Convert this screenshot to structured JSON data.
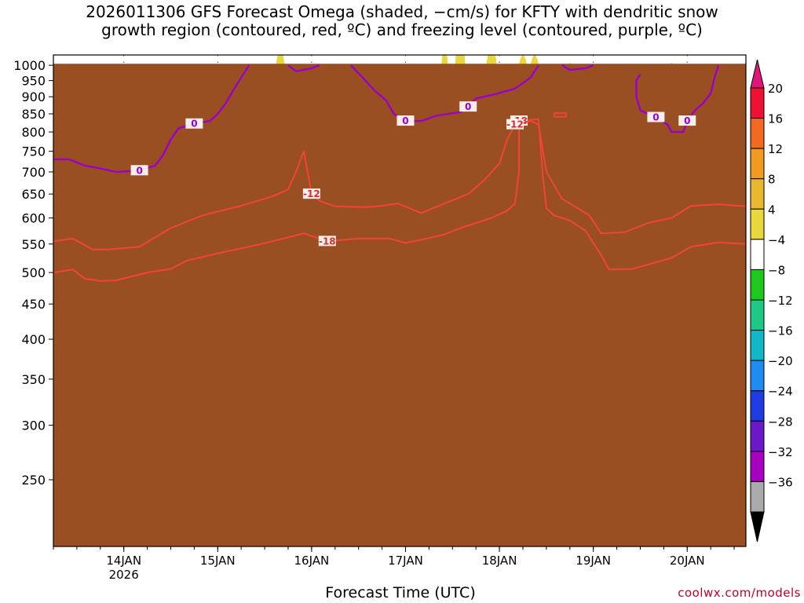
{
  "chart_data": {
    "type": "heatmap",
    "title_line1": "2026011306 GFS Forecast Omega (shaded, −cm/s) for KFTY with dendritic snow",
    "title_line2": "growth region (contoured, red, ºC) and freezing level (contoured, purple, ºC)",
    "xlabel": "Forecast Time (UTC)",
    "credit": "coolwx.com/models",
    "y_axis": {
      "scale": "log-pressure",
      "range_hpa": [
        1035,
        200
      ],
      "ticks": [
        250,
        300,
        350,
        400,
        450,
        500,
        550,
        600,
        650,
        700,
        750,
        800,
        850,
        900,
        950,
        1000
      ]
    },
    "x_axis": {
      "range_hours": [
        0,
        177
      ],
      "ticks": [
        {
          "label": "14JAN",
          "sub": "2026",
          "hour": 18
        },
        {
          "label": "15JAN",
          "sub": "",
          "hour": 42
        },
        {
          "label": "16JAN",
          "sub": "",
          "hour": 66
        },
        {
          "label": "17JAN",
          "sub": "",
          "hour": 90
        },
        {
          "label": "18JAN",
          "sub": "",
          "hour": 114
        },
        {
          "label": "19JAN",
          "sub": "",
          "hour": 138
        },
        {
          "label": "20JAN",
          "sub": "",
          "hour": 162
        }
      ]
    },
    "colorbar": {
      "levels": [
        "20",
        "16",
        "12",
        "8",
        "4",
        "−4",
        "−8",
        "−12",
        "−16",
        "−20",
        "−24",
        "−28",
        "−32",
        "−36"
      ],
      "colors": [
        "#ee1133",
        "#f26a22",
        "#f09a22",
        "#e8b830",
        "#e8d840",
        "#ffffff",
        "#1ec81e",
        "#20c888",
        "#12b8c8",
        "#1e8cf0",
        "#1e3ce0",
        "#6a18c8",
        "#a800c0",
        "#aaaaaa"
      ],
      "top_color": "#e0157a",
      "bottom_color": "#000000"
    },
    "contours_red": [
      {
        "label": "-18",
        "points": [
          [
            0,
            500
          ],
          [
            5,
            505
          ],
          [
            8,
            490
          ],
          [
            12,
            486
          ],
          [
            16,
            487
          ],
          [
            24,
            500
          ],
          [
            30,
            506
          ],
          [
            34,
            520
          ],
          [
            40,
            530
          ],
          [
            50,
            545
          ],
          [
            56,
            555
          ],
          [
            64,
            570
          ],
          [
            70,
            555
          ],
          [
            78,
            560
          ],
          [
            86,
            560
          ],
          [
            90,
            552
          ],
          [
            94,
            558
          ],
          [
            100,
            568
          ],
          [
            104,
            580
          ],
          [
            108,
            590
          ],
          [
            112,
            600
          ],
          [
            116,
            615
          ],
          [
            118,
            630
          ],
          [
            119,
            700
          ],
          [
            119,
            830
          ],
          [
            124,
            835
          ],
          [
            125,
            700
          ],
          [
            126,
            620
          ],
          [
            128,
            605
          ],
          [
            132,
            595
          ],
          [
            136,
            575
          ],
          [
            140,
            530
          ],
          [
            142,
            505
          ],
          [
            148,
            506
          ],
          [
            158,
            525
          ],
          [
            163,
            545
          ],
          [
            170,
            553
          ],
          [
            177,
            550
          ]
        ]
      },
      {
        "label": "-12",
        "points": [
          [
            0,
            555
          ],
          [
            5,
            560
          ],
          [
            10,
            540
          ],
          [
            14,
            540
          ],
          [
            22,
            545
          ],
          [
            30,
            580
          ],
          [
            38,
            605
          ],
          [
            48,
            625
          ],
          [
            56,
            645
          ],
          [
            60,
            660
          ],
          [
            62,
            700
          ],
          [
            64,
            750
          ],
          [
            66,
            650
          ],
          [
            68,
            635
          ],
          [
            72,
            624
          ],
          [
            80,
            622
          ],
          [
            84,
            625
          ],
          [
            88,
            630
          ],
          [
            94,
            610
          ],
          [
            100,
            630
          ],
          [
            106,
            650
          ],
          [
            110,
            680
          ],
          [
            114,
            720
          ],
          [
            116,
            780
          ],
          [
            118,
            820
          ],
          [
            122,
            830
          ],
          [
            124,
            820
          ],
          [
            126,
            700
          ],
          [
            130,
            640
          ],
          [
            134,
            620
          ],
          [
            137,
            605
          ],
          [
            140,
            570
          ],
          [
            146,
            572
          ],
          [
            152,
            590
          ],
          [
            158,
            600
          ],
          [
            163,
            625
          ],
          [
            170,
            628
          ],
          [
            177,
            624
          ]
        ]
      },
      {
        "label": "",
        "points": [
          [
            128,
            842
          ],
          [
            131,
            842
          ],
          [
            131,
            852
          ],
          [
            128,
            852
          ],
          [
            128,
            842
          ]
        ]
      }
    ],
    "contours_purple": [
      {
        "label": "0",
        "points": [
          [
            0,
            730
          ],
          [
            4,
            730
          ],
          [
            8,
            715
          ],
          [
            12,
            708
          ],
          [
            16,
            700
          ],
          [
            22,
            703
          ],
          [
            26,
            715
          ],
          [
            28,
            740
          ],
          [
            30,
            780
          ],
          [
            32,
            810
          ],
          [
            36,
            822
          ],
          [
            40,
            830
          ],
          [
            42,
            850
          ],
          [
            44,
            880
          ],
          [
            46,
            920
          ],
          [
            48,
            960
          ],
          [
            50,
            1000
          ]
        ]
      },
      {
        "label": "",
        "points": [
          [
            60,
            1000
          ],
          [
            62,
            980
          ],
          [
            66,
            990
          ],
          [
            68,
            1000
          ]
        ]
      },
      {
        "label": "0",
        "points": [
          [
            76,
            1000
          ],
          [
            79,
            960
          ],
          [
            82,
            920
          ],
          [
            85,
            890
          ],
          [
            87,
            850
          ],
          [
            90,
            830
          ],
          [
            94,
            830
          ],
          [
            98,
            845
          ],
          [
            101,
            850
          ],
          [
            104,
            855
          ],
          [
            106,
            870
          ],
          [
            108,
            895
          ],
          [
            112,
            905
          ],
          [
            118,
            925
          ],
          [
            122,
            960
          ],
          [
            124,
            1000
          ]
        ]
      },
      {
        "label": "",
        "points": [
          [
            130,
            1000
          ],
          [
            132,
            985
          ],
          [
            136,
            990
          ],
          [
            138,
            1000
          ]
        ]
      },
      {
        "label": "0",
        "points": [
          [
            150,
            970
          ],
          [
            149,
            950
          ],
          [
            149,
            900
          ],
          [
            150,
            860
          ],
          [
            154,
            840
          ],
          [
            157,
            820
          ],
          [
            158,
            800
          ],
          [
            161,
            800
          ],
          [
            162,
            830
          ],
          [
            164,
            860
          ],
          [
            166,
            880
          ],
          [
            168,
            910
          ],
          [
            169,
            960
          ],
          [
            170,
            1000
          ]
        ]
      }
    ]
  }
}
